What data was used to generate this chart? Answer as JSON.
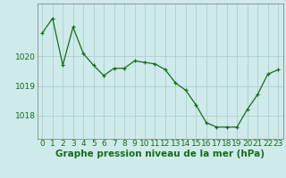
{
  "x": [
    0,
    1,
    2,
    3,
    4,
    5,
    6,
    7,
    8,
    9,
    10,
    11,
    12,
    13,
    14,
    15,
    16,
    17,
    18,
    19,
    20,
    21,
    22,
    23
  ],
  "y": [
    1020.8,
    1021.3,
    1019.7,
    1021.0,
    1020.1,
    1019.7,
    1019.35,
    1019.6,
    1019.6,
    1019.85,
    1019.8,
    1019.75,
    1019.55,
    1019.1,
    1018.85,
    1018.35,
    1017.75,
    1017.6,
    1017.6,
    1017.6,
    1018.2,
    1018.7,
    1019.4,
    1019.55
  ],
  "bg_color": "#ceeaea",
  "grid_color": "#aacaca",
  "line_color": "#1a6b1a",
  "marker_color": "#1a6b1a",
  "ylabel_ticks": [
    1018,
    1019,
    1020
  ],
  "xlabel": "Graphe pression niveau de la mer (hPa)",
  "xlim": [
    -0.5,
    23.5
  ],
  "ylim": [
    1017.2,
    1021.8
  ],
  "tick_fontsize": 6.5,
  "label_fontsize": 7.5
}
